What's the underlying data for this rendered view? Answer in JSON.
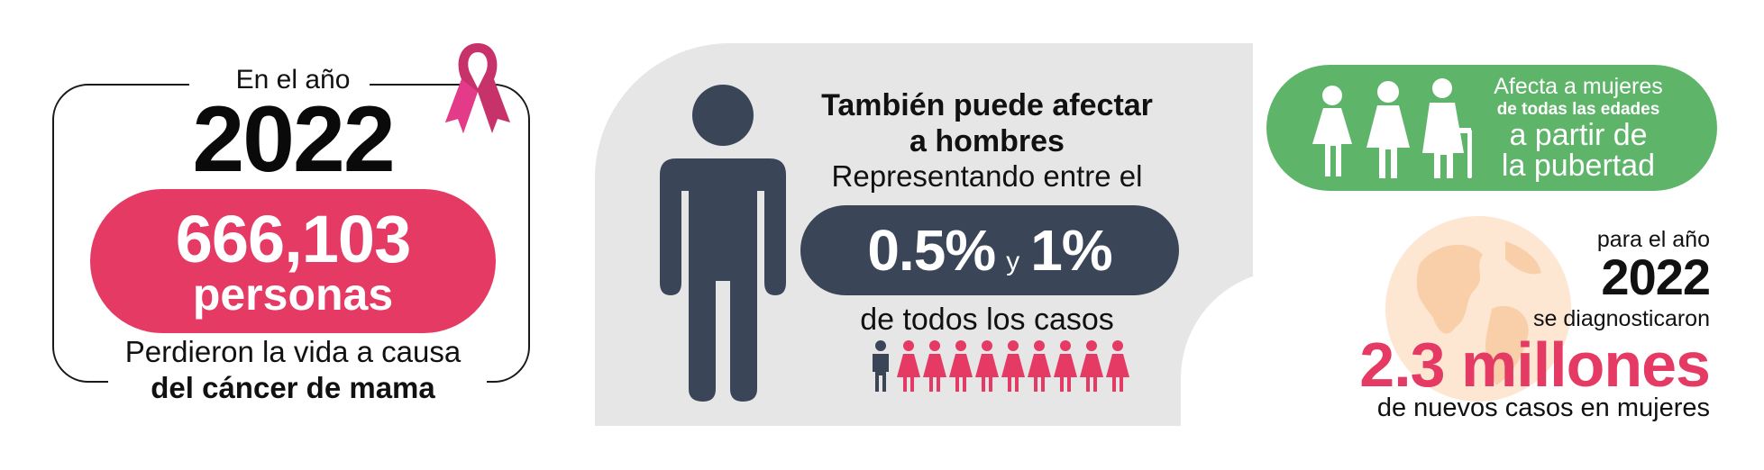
{
  "panel_deaths": {
    "intro": "En el año",
    "year": "2022",
    "count": "666,103",
    "people": "personas",
    "caption_line1": "Perdieron la vida a causa",
    "caption_line2": "del cáncer de mama",
    "accent_color": "#e43a63",
    "icon": "pink-ribbon-icon"
  },
  "panel_men": {
    "title_line1": "También puede afectar",
    "title_line2": "a hombres",
    "subtitle": "Representando entre el",
    "low_pct": "0.5%",
    "connector": "y",
    "high_pct": "1%",
    "footer": "de todos los casos",
    "pill_color": "#3a4657",
    "people_icons": {
      "men": 1,
      "women": 9
    }
  },
  "panel_women": {
    "green_line1": "Afecta a mujeres",
    "green_line2": "de todas las edades",
    "green_line3": "a partir de",
    "green_line4": "la pubertad",
    "green_color": "#5eb56a",
    "intro": "para el año",
    "year": "2022",
    "verb": "se diagnosticaron",
    "count": "2.3 millones",
    "caption": "de nuevos casos en mujeres",
    "icons": [
      "women-of-all-ages-icon",
      "globe-icon"
    ]
  }
}
